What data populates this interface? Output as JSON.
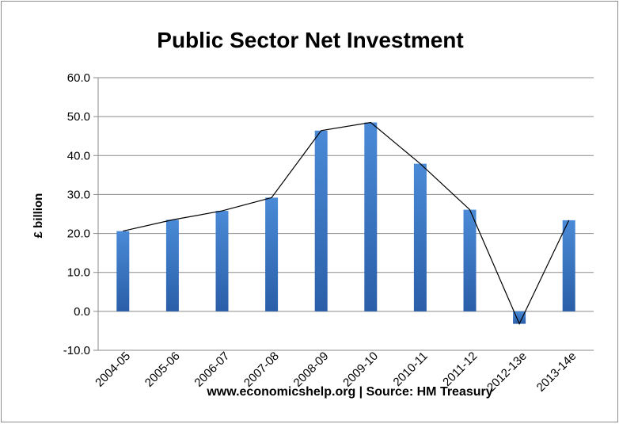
{
  "chart_data": {
    "type": "bar",
    "title": "Public Sector Net Investment",
    "ylabel": "£ billion",
    "xlabel": "www.economicshelp.org | Source: HM Treasury",
    "categories": [
      "2004-05",
      "2005-06",
      "2006-07",
      "2007-08",
      "2008-09",
      "2009-10",
      "2010-11",
      "2011-12",
      "2012-13e",
      "2013-14e"
    ],
    "series": [
      {
        "values": [
          20.6,
          23.5,
          25.8,
          29.2,
          46.4,
          48.5,
          37.9,
          26.1,
          -3.2,
          23.4
        ]
      }
    ],
    "overlay_line": true,
    "ylim": [
      -10,
      60
    ],
    "yticks": [
      "-10.0",
      "0.0",
      "10.0",
      "20.0",
      "30.0",
      "40.0",
      "50.0",
      "60.0"
    ],
    "grid": true,
    "legend": "none",
    "colors": {
      "bar": "#3a75c4",
      "bar_dark": "#2a5ea8",
      "line": "#000000",
      "grid": "#8a8a8a"
    }
  }
}
